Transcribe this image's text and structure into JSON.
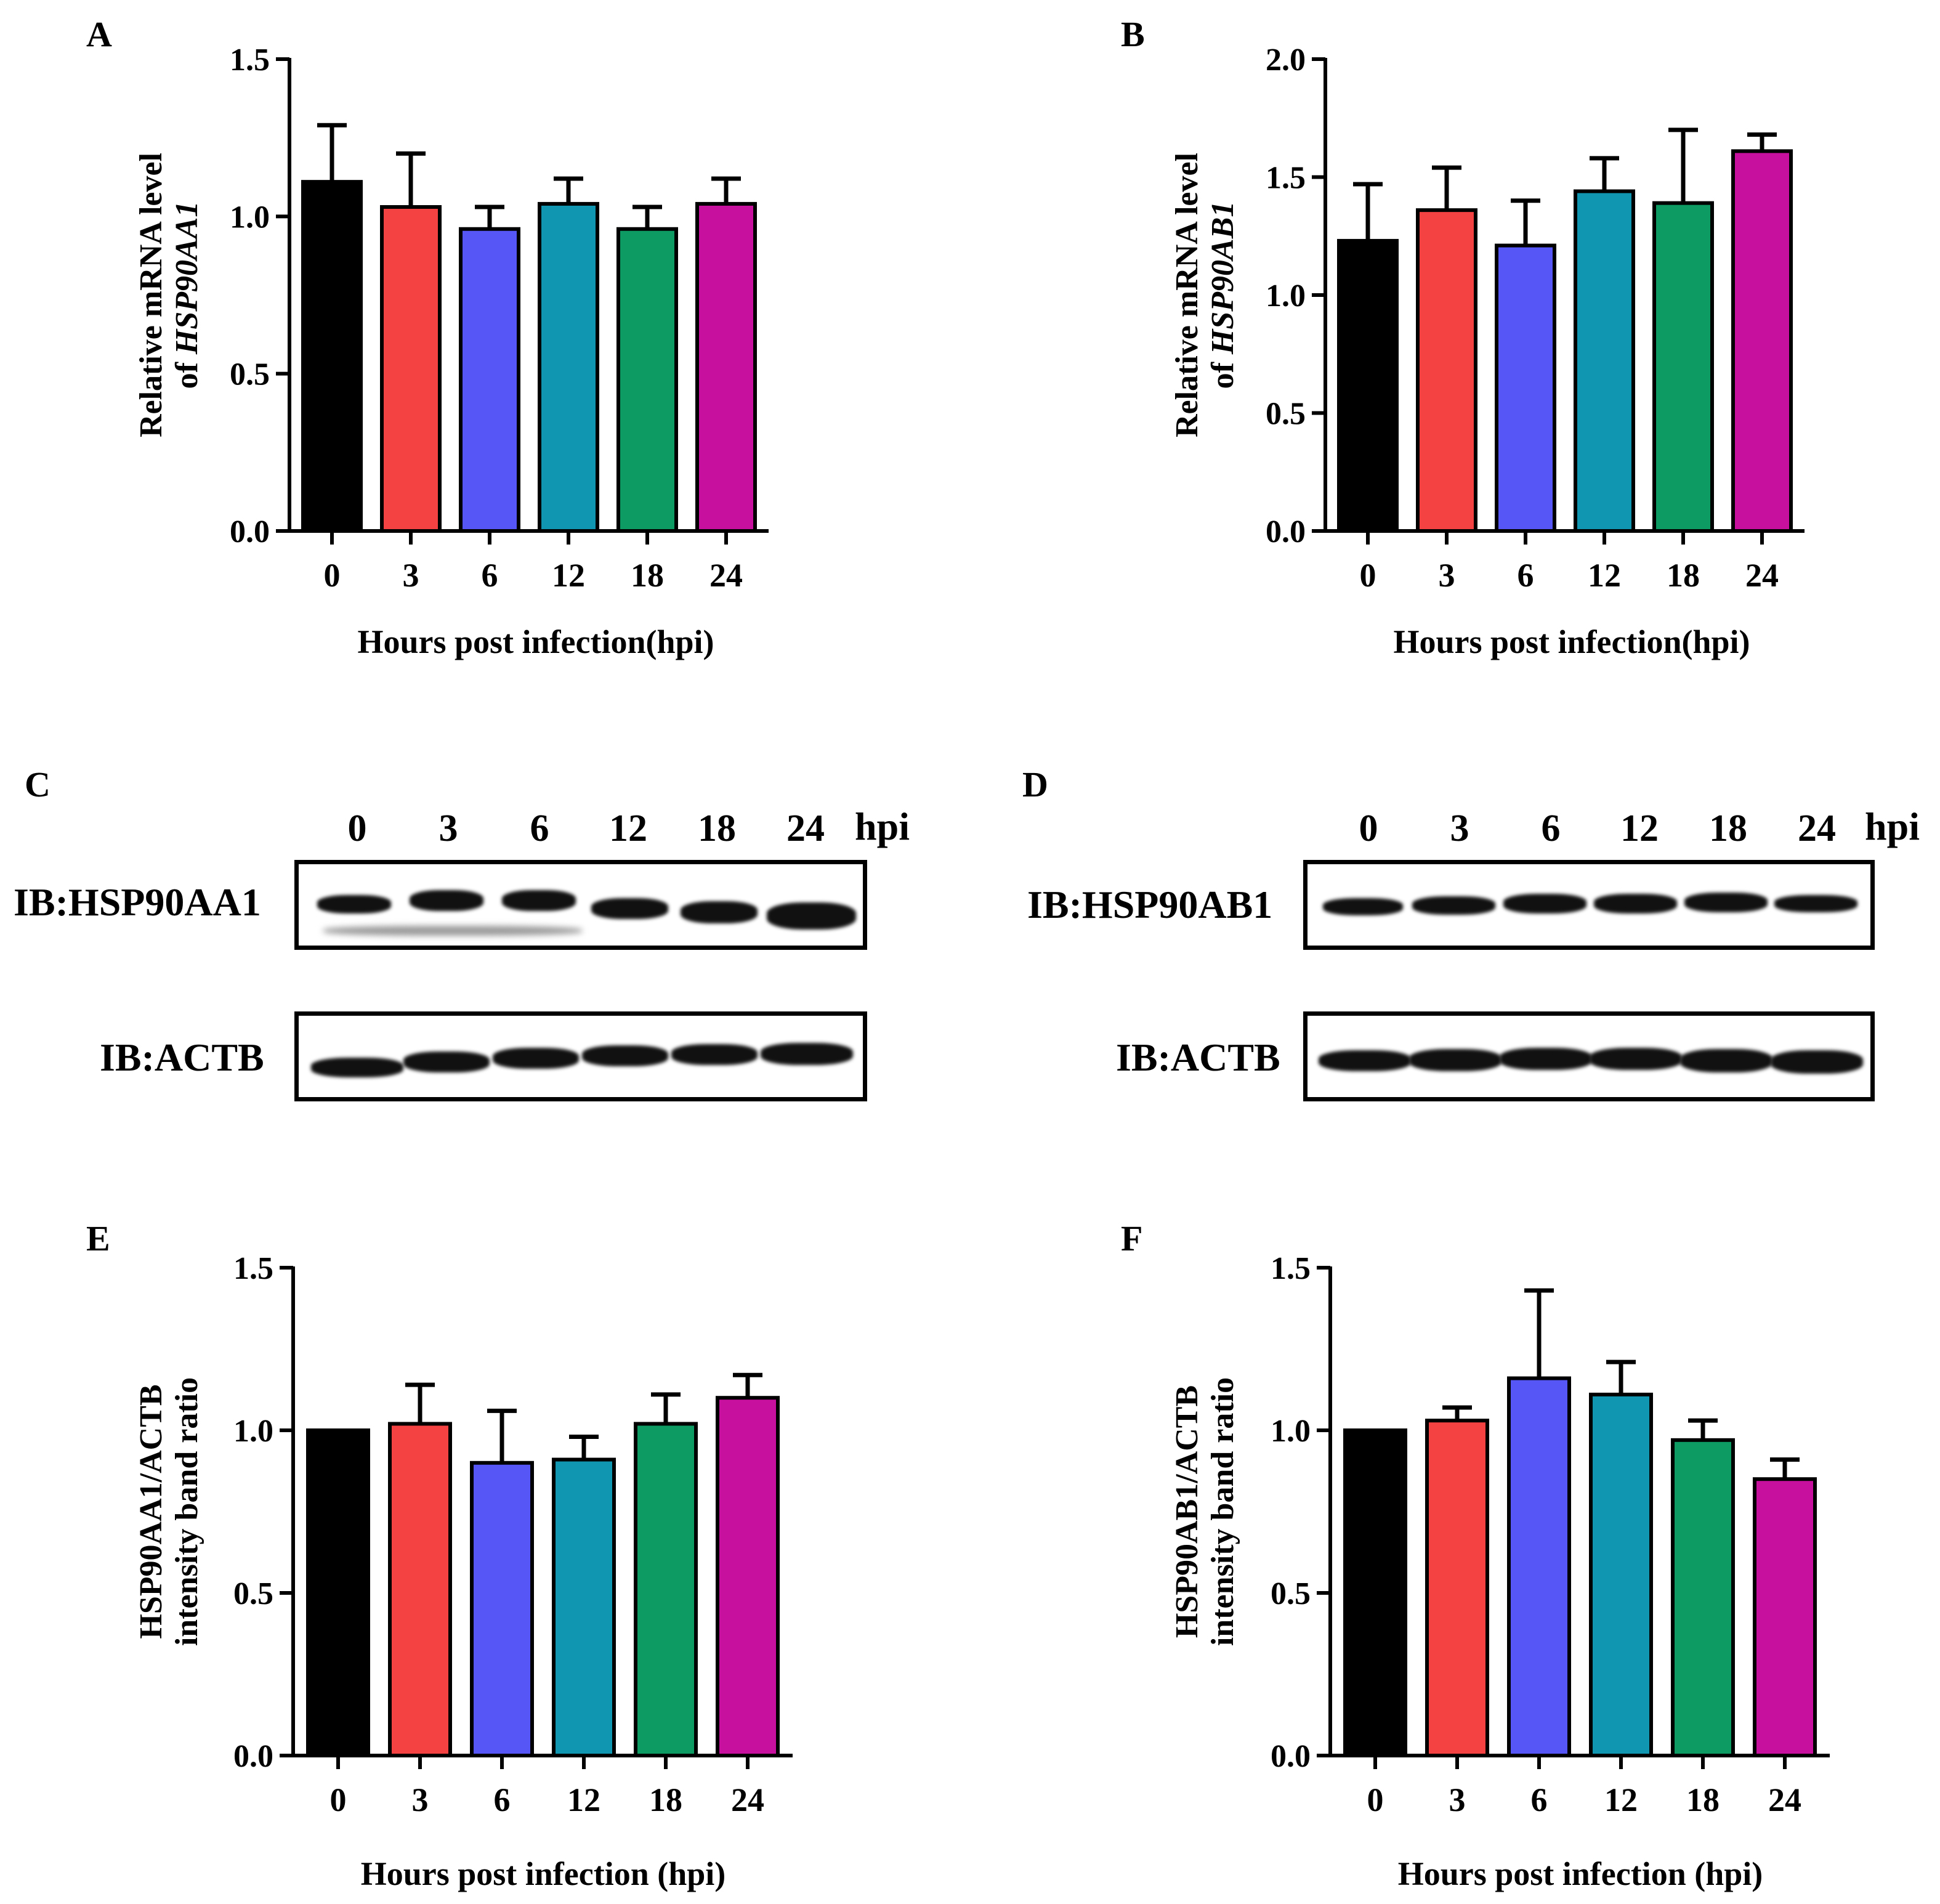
{
  "colors": {
    "t0": "#000000",
    "t3": "#f44141",
    "t6": "#5656f7",
    "t12": "#1196b2",
    "t18": "#0d9a63",
    "t24": "#c8109f"
  },
  "chart_data": [
    {
      "panel": "A",
      "type": "bar",
      "categories": [
        "0",
        "3",
        "6",
        "12",
        "18",
        "24"
      ],
      "values": [
        1.11,
        1.03,
        0.96,
        1.04,
        0.96,
        1.04
      ],
      "errors": [
        0.18,
        0.17,
        0.07,
        0.08,
        0.07,
        0.08
      ],
      "ylim": [
        0,
        1.5
      ],
      "yticks": [
        "0.0",
        "0.5",
        "1.0",
        "1.5"
      ],
      "ytick_values": [
        0,
        0.5,
        1.0,
        1.5
      ],
      "ylabel_line1": "Relative mRNA level",
      "ylabel_line2_prefix": "of ",
      "ylabel_line2_gene": "HSP90AA1",
      "xlabel": "Hours post infection(hpi)"
    },
    {
      "panel": "B",
      "type": "bar",
      "categories": [
        "0",
        "3",
        "6",
        "12",
        "18",
        "24"
      ],
      "values": [
        1.23,
        1.36,
        1.21,
        1.44,
        1.39,
        1.61
      ],
      "errors": [
        0.24,
        0.18,
        0.19,
        0.14,
        0.31,
        0.07
      ],
      "ylim": [
        0,
        2.0
      ],
      "yticks": [
        "0.0",
        "0.5",
        "1.0",
        "1.5",
        "2.0"
      ],
      "ytick_values": [
        0,
        0.5,
        1.0,
        1.5,
        2.0
      ],
      "ylabel_line1": "Relative mRNA level",
      "ylabel_line2_prefix": "of ",
      "ylabel_line2_gene": "HSP90AB1",
      "xlabel": "Hours post infection(hpi)"
    },
    {
      "panel": "E",
      "type": "bar",
      "categories": [
        "0",
        "3",
        "6",
        "12",
        "18",
        "24"
      ],
      "values": [
        1.0,
        1.02,
        0.9,
        0.91,
        1.02,
        1.1
      ],
      "errors": [
        0.0,
        0.12,
        0.16,
        0.07,
        0.09,
        0.07
      ],
      "ylim": [
        0,
        1.5
      ],
      "yticks": [
        "0.0",
        "0.5",
        "1.0",
        "1.5"
      ],
      "ytick_values": [
        0,
        0.5,
        1.0,
        1.5
      ],
      "ylabel_line1": "HSP90AA1/ACTB",
      "ylabel_line2_prefix": "intensity band ratio",
      "ylabel_line2_gene": "",
      "xlabel": "Hours post infection (hpi)"
    },
    {
      "panel": "F",
      "type": "bar",
      "categories": [
        "0",
        "3",
        "6",
        "12",
        "18",
        "24"
      ],
      "values": [
        1.0,
        1.03,
        1.16,
        1.11,
        0.97,
        0.85
      ],
      "errors": [
        0.0,
        0.04,
        0.27,
        0.1,
        0.06,
        0.06
      ],
      "ylim": [
        0,
        1.5
      ],
      "yticks": [
        "0.0",
        "0.5",
        "1.0",
        "1.5"
      ],
      "ytick_values": [
        0,
        0.5,
        1.0,
        1.5
      ],
      "ylabel_line1": "HSP90AB1/ACTB",
      "ylabel_line2_prefix": "intensity band ratio",
      "ylabel_line2_gene": "",
      "xlabel": "Hours post infection (hpi)"
    }
  ],
  "blots": {
    "C": {
      "panel": "C",
      "lanes": [
        "0",
        "3",
        "6",
        "12",
        "18",
        "24"
      ],
      "unit": "hpi",
      "target_label": "IB:HSP90AA1",
      "control_label": "IB:ACTB"
    },
    "D": {
      "panel": "D",
      "lanes": [
        "0",
        "3",
        "6",
        "12",
        "18",
        "24"
      ],
      "unit": "hpi",
      "target_label": "IB:HSP90AB1",
      "control_label": "IB:ACTB"
    }
  }
}
